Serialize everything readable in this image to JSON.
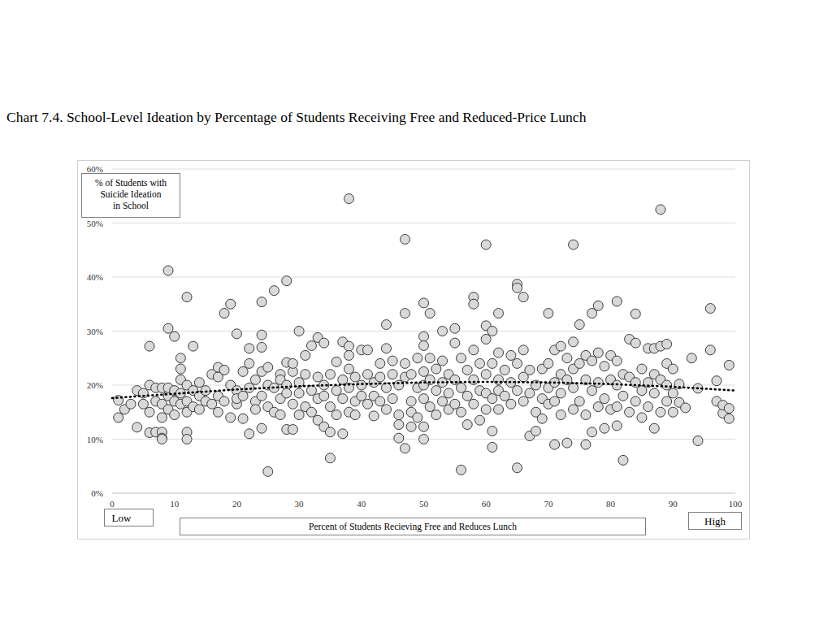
{
  "chart_data": {
    "type": "scatter",
    "title": "Chart 7.4. School-Level Ideation by Percentage of Students Receiving Free and Reduced-Price Lunch",
    "y_label": [
      "% of Students with",
      "Suicide Ideation",
      "in School"
    ],
    "x_label": "Percent of Students Recieving Free and Reduces Lunch",
    "annotations": [
      "Low",
      "High"
    ],
    "xlim": [
      0,
      100
    ],
    "xticks": [
      0,
      10,
      20,
      30,
      40,
      50,
      60,
      70,
      80,
      90,
      100
    ],
    "ylim": [
      0,
      60
    ],
    "yticks": [
      {
        "value": 0,
        "label": "0%"
      },
      {
        "value": 10,
        "label": "10%"
      },
      {
        "value": 20,
        "label": "20%"
      },
      {
        "value": 30,
        "label": "30%"
      },
      {
        "value": 40,
        "label": "40%"
      },
      {
        "value": 50,
        "label": "50%"
      },
      {
        "value": 60,
        "label": "60%"
      }
    ],
    "grid": true,
    "series": [
      {
        "type": "scatter",
        "marker": "circle",
        "color": "#d9d9d9",
        "x": [
          1,
          1,
          2,
          3,
          4,
          4,
          5,
          5,
          6,
          6,
          6,
          6,
          7,
          7,
          7,
          8,
          8,
          8,
          8,
          8,
          8,
          9,
          9,
          9,
          9,
          9,
          10,
          10,
          10,
          10,
          11,
          11,
          11,
          11,
          11,
          12,
          12,
          12,
          12,
          12,
          12,
          13,
          13,
          13,
          14,
          14,
          14,
          15,
          15,
          16,
          16,
          17,
          17,
          17,
          17,
          18,
          18,
          18,
          19,
          19,
          19,
          20,
          20,
          20,
          20,
          21,
          21,
          21,
          22,
          22,
          22,
          22,
          23,
          23,
          23,
          24,
          24,
          24,
          24,
          24,
          24,
          25,
          25,
          25,
          25,
          26,
          26,
          26,
          27,
          27,
          27,
          27,
          28,
          28,
          28,
          28,
          28,
          29,
          29,
          29,
          29,
          30,
          30,
          30,
          30,
          31,
          31,
          31,
          32,
          32,
          32,
          33,
          33,
          33,
          33,
          34,
          34,
          34,
          34,
          35,
          35,
          35,
          35,
          36,
          36,
          36,
          37,
          37,
          37,
          37,
          38,
          38,
          38,
          38,
          38,
          38,
          39,
          39,
          39,
          40,
          40,
          40,
          41,
          41,
          41,
          42,
          42,
          42,
          43,
          43,
          43,
          44,
          44,
          44,
          44,
          45,
          45,
          45,
          46,
          46,
          46,
          46,
          47,
          47,
          47,
          47,
          47,
          48,
          48,
          48,
          48,
          49,
          49,
          49,
          50,
          50,
          50,
          50,
          50,
          50,
          50,
          50,
          51,
          51,
          51,
          51,
          52,
          52,
          52,
          53,
          53,
          53,
          53,
          54,
          54,
          54,
          55,
          55,
          55,
          55,
          56,
          56,
          56,
          56,
          57,
          57,
          57,
          58,
          58,
          58,
          58,
          58,
          59,
          59,
          59,
          60,
          60,
          60,
          60,
          60,
          60,
          61,
          61,
          61,
          61,
          61,
          62,
          62,
          62,
          62,
          62,
          63,
          63,
          64,
          64,
          64,
          65,
          65,
          65,
          65,
          65,
          66,
          66,
          66,
          66,
          67,
          67,
          67,
          68,
          68,
          68,
          69,
          69,
          69,
          70,
          70,
          70,
          70,
          71,
          71,
          71,
          71,
          72,
          72,
          72,
          72,
          73,
          73,
          73,
          74,
          74,
          74,
          74,
          74,
          75,
          75,
          75,
          76,
          76,
          76,
          76,
          77,
          77,
          77,
          77,
          78,
          78,
          78,
          78,
          79,
          79,
          79,
          80,
          80,
          80,
          81,
          81,
          81,
          81,
          81,
          82,
          82,
          82,
          83,
          83,
          83,
          84,
          84,
          84,
          84,
          85,
          85,
          85,
          86,
          86,
          86,
          87,
          87,
          87,
          87,
          88,
          88,
          88,
          88,
          89,
          89,
          89,
          89,
          90,
          90,
          90,
          91,
          91,
          92,
          93,
          94,
          94,
          96,
          96,
          97,
          97,
          98,
          98,
          99,
          99,
          99
        ],
        "values": [
          17.2,
          14,
          15.5,
          16.5,
          19,
          12.2,
          18.5,
          16.5,
          20,
          15,
          11.2,
          27.2,
          17,
          19.5,
          11.3,
          19.5,
          16.5,
          14,
          11.3,
          10.2,
          10,
          18,
          19.5,
          15.5,
          30.5,
          41.2,
          19,
          17,
          14.5,
          29,
          25,
          23,
          18.5,
          16.5,
          21,
          20,
          17,
          15,
          11.3,
          10,
          36.3,
          27.2,
          19,
          16,
          18,
          20.5,
          15.5,
          19,
          17,
          22,
          16.5,
          21.5,
          18,
          15,
          23.3,
          33.3,
          22.8,
          17,
          35,
          20,
          14,
          29.5,
          19,
          16.5,
          17.5,
          22.5,
          18,
          13.8,
          11,
          26.8,
          19.5,
          24,
          17,
          21,
          15.5,
          29.3,
          35.4,
          27,
          18,
          12,
          22.5,
          4,
          20,
          16,
          23.3,
          37.5,
          15,
          19.5,
          22,
          21,
          17.5,
          14.5,
          39.3,
          24.2,
          20,
          11.8,
          18.5,
          11.8,
          22.5,
          16.5,
          24,
          30,
          20.5,
          18.5,
          14.5,
          22,
          16,
          25.5,
          27.3,
          19,
          15,
          28.8,
          21.5,
          17.5,
          13.5,
          20,
          12.3,
          27.8,
          18,
          6.5,
          22,
          16,
          11.3,
          24.3,
          19,
          14.5,
          28,
          21,
          17.5,
          11,
          54.5,
          27.2,
          25.5,
          23,
          19.5,
          15,
          21.5,
          17,
          14.5,
          26.5,
          20,
          18,
          26.5,
          22,
          16.5,
          20.5,
          18,
          14.3,
          24,
          21.5,
          17,
          31.2,
          26.8,
          19.5,
          15.5,
          24.5,
          22,
          17.5,
          20,
          14.5,
          12.7,
          10.2,
          47,
          33.3,
          24,
          21.5,
          8.3,
          22,
          17,
          15,
          12.3,
          25,
          19.5,
          14,
          35.2,
          29,
          27.3,
          22.5,
          20,
          17.5,
          12.3,
          10,
          33.3,
          25,
          21,
          16,
          23,
          19,
          14.5,
          30,
          24.5,
          20.5,
          17,
          22,
          18.5,
          15.5,
          30.5,
          27.8,
          21,
          16.5,
          4.3,
          25,
          19.5,
          15,
          22.8,
          18,
          12.7,
          36.3,
          35,
          26.5,
          21,
          16.5,
          24,
          19,
          13.5,
          46,
          31,
          28.5,
          22,
          18.5,
          15.5,
          30,
          24,
          17.5,
          11.5,
          8.5,
          33.3,
          26,
          21,
          19,
          15.5,
          22.8,
          18,
          25.5,
          20.5,
          16.5,
          38.7,
          38,
          24,
          19,
          4.7,
          36.3,
          26.5,
          21.5,
          17,
          22.8,
          18.5,
          10.6,
          20,
          15,
          11.5,
          23,
          17.5,
          13.8,
          33.3,
          24,
          19.5,
          16.5,
          26.5,
          20.5,
          17,
          9,
          27.2,
          22,
          18.5,
          14.5,
          25,
          21,
          9.3,
          46,
          28,
          23,
          19.5,
          15.5,
          31.2,
          24,
          17,
          25.5,
          21,
          14.5,
          9,
          33.3,
          24.5,
          19,
          11.3,
          34.7,
          26,
          20.5,
          16,
          23.5,
          17.5,
          12,
          25.5,
          21,
          15.5,
          35.5,
          24.5,
          20,
          16,
          12.5,
          22,
          18,
          6.1,
          28.5,
          21.5,
          15,
          33.2,
          27.8,
          20.5,
          17,
          23,
          19,
          14,
          26.8,
          20.5,
          16,
          26.8,
          22,
          18.5,
          12,
          52.5,
          27.2,
          21,
          15,
          27.6,
          24,
          20,
          17,
          23,
          18.5,
          15,
          20.2,
          16.8,
          15.8,
          25,
          9.7,
          19.4,
          34.2,
          26.5,
          20.8,
          17,
          14.8,
          16.3,
          13.8,
          15.7,
          23.7
        ]
      },
      {
        "type": "line",
        "line_style": "dotted",
        "color": "#000000",
        "x": [
          0,
          10,
          20,
          30,
          40,
          50,
          60,
          70,
          80,
          90,
          100
        ],
        "values": [
          17.6,
          18.4,
          19.2,
          19.8,
          20.2,
          20.5,
          20.6,
          20.5,
          20.2,
          19.7,
          19.0
        ]
      }
    ]
  }
}
